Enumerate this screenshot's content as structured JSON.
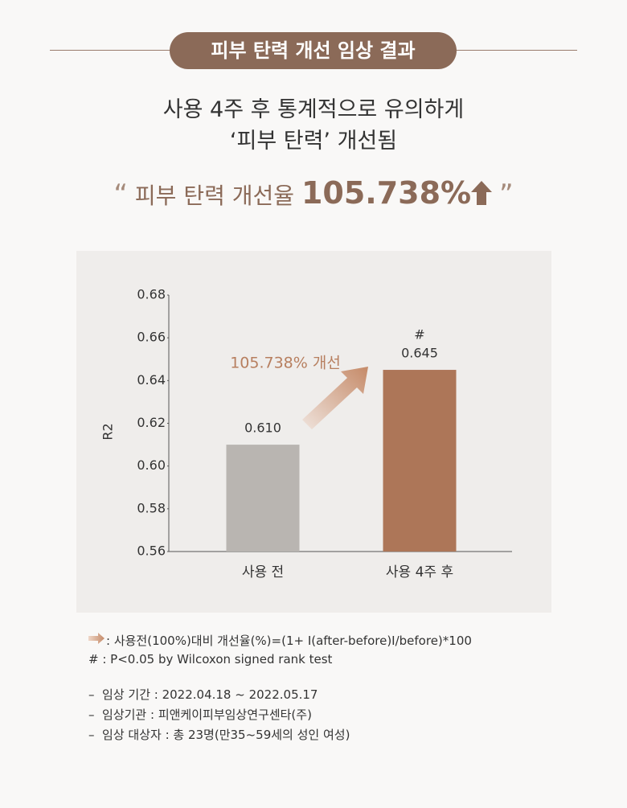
{
  "header": {
    "title": "피부 탄력 개선 임상 결과",
    "subtitle_lines": [
      "사용 4주 후 통계적으로 유의하게",
      "‘피부 탄력’ 개선됨"
    ],
    "highlight": {
      "open_quote": "“",
      "prefix": "피부 탄력 개선율",
      "value": "105.738%",
      "close_quote": "”"
    }
  },
  "chart_data": {
    "type": "bar",
    "categories": [
      "사용 전",
      "사용 4주 후"
    ],
    "values": [
      0.61,
      0.645
    ],
    "value_labels": [
      "0.610",
      "0.645"
    ],
    "value_markers": [
      null,
      "#"
    ],
    "colors": [
      "#b9b5b1",
      "#ad7658"
    ],
    "ylabel": "R2",
    "ylim": [
      0.56,
      0.68
    ],
    "yticks": [
      0.56,
      0.58,
      {
        "value": 0.6,
        "label": "0.60"
      },
      0.62,
      0.64,
      0.66,
      0.68
    ],
    "annotation": "105.738% 개선",
    "grid": false
  },
  "notes": [
    ": 사용전(100%)대비 개선율(%)=(1+ I(after-before)I/before)*100",
    "# : P<0.05 by Wilcoxon signed rank test"
  ],
  "details": [
    "–  임상 기간 : 2022.04.18 ~ 2022.05.17",
    "–  임상기관 : 피앤케이피부임상연구센타(주)",
    "–  임상 대상자 : 총 23명(만35~59세의 성인 여성)"
  ]
}
